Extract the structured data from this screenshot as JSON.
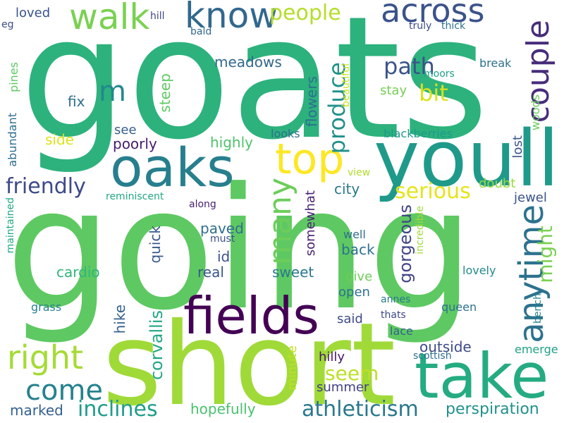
{
  "words": [
    {
      "text": "goats",
      "color": "#2db27d"
    },
    {
      "text": "going",
      "color": "#5ec962"
    },
    {
      "text": "short",
      "color": "#a0da39"
    },
    {
      "text": "youll",
      "color": "#1f9a8a"
    },
    {
      "text": "oaks",
      "color": "#277f8e"
    },
    {
      "text": "take",
      "color": "#25ab82"
    },
    {
      "text": "fields",
      "color": "#440154"
    },
    {
      "text": "top",
      "color": "#fde725"
    },
    {
      "text": "walk",
      "color": "#7ad151"
    },
    {
      "text": "know",
      "color": "#31688e"
    },
    {
      "text": "across",
      "color": "#3b528b"
    },
    {
      "text": "couple",
      "color": "#472d7b"
    },
    {
      "text": "anytime",
      "color": "#2c728e"
    },
    {
      "text": "many",
      "color": "#6ccd5a"
    },
    {
      "text": "right",
      "color": "#a5db36"
    },
    {
      "text": "come",
      "color": "#26828e"
    },
    {
      "text": "people",
      "color": "#b5de2b"
    },
    {
      "text": "m",
      "color": "#23888e"
    },
    {
      "text": "path",
      "color": "#3b528b"
    },
    {
      "text": "produce",
      "color": "#21918c"
    },
    {
      "text": "bit",
      "color": "#d8e219"
    },
    {
      "text": "friendly",
      "color": "#3e4a89"
    },
    {
      "text": "serious",
      "color": "#e5e419"
    },
    {
      "text": "inclines",
      "color": "#1f9e89"
    },
    {
      "text": "athleticism",
      "color": "#2a788e"
    },
    {
      "text": "perspiration",
      "color": "#21918c"
    },
    {
      "text": "might",
      "color": "#7ad151"
    },
    {
      "text": "seem",
      "color": "#bddf26"
    },
    {
      "text": "corvallis",
      "color": "#22a785"
    },
    {
      "text": "gorgeous",
      "color": "#414487"
    },
    {
      "text": "outside",
      "color": "#3e4a89"
    },
    {
      "text": "cardio",
      "color": "#31b57b"
    },
    {
      "text": "sweet",
      "color": "#2a788e"
    },
    {
      "text": "back",
      "color": "#2c728e"
    },
    {
      "text": "paved",
      "color": "#2e6f8e"
    },
    {
      "text": "id",
      "color": "#3b528b"
    },
    {
      "text": "real",
      "color": "#39568c"
    },
    {
      "text": "quick",
      "color": "#38598c"
    },
    {
      "text": "hike",
      "color": "#355f8d"
    },
    {
      "text": "hopefully",
      "color": "#4ac16d"
    },
    {
      "text": "marked",
      "color": "#34618d"
    },
    {
      "text": "summer",
      "color": "#424086"
    },
    {
      "text": "open",
      "color": "#2c728e"
    },
    {
      "text": "give",
      "color": "#6ccd5a"
    },
    {
      "text": "said",
      "color": "#3e4a89"
    },
    {
      "text": "hilly",
      "color": "#48186a"
    },
    {
      "text": "minute",
      "color": "#c0df25"
    },
    {
      "text": "city",
      "color": "#2a788e"
    },
    {
      "text": "doubt",
      "color": "#9bd93c"
    },
    {
      "text": "jewel",
      "color": "#3b528b"
    },
    {
      "text": "lost",
      "color": "#3a548c"
    },
    {
      "text": "highly",
      "color": "#4ec36b"
    },
    {
      "text": "poorly",
      "color": "#481a6c"
    },
    {
      "text": "side",
      "color": "#dde318"
    },
    {
      "text": "see",
      "color": "#355f8d"
    },
    {
      "text": "fix",
      "color": "#2d708e"
    },
    {
      "text": "meadows",
      "color": "#31688e"
    },
    {
      "text": "steep",
      "color": "#5ec962"
    },
    {
      "text": "flowers",
      "color": "#2d708e"
    },
    {
      "text": "stay",
      "color": "#75d054"
    },
    {
      "text": "somewhat",
      "color": "#482173"
    },
    {
      "text": "along",
      "color": "#481f70"
    },
    {
      "text": "must",
      "color": "#3b528b"
    },
    {
      "text": "view",
      "color": "#b2dd2d"
    },
    {
      "text": "well",
      "color": "#2d708e"
    },
    {
      "text": "incredible",
      "color": "#a0da39"
    },
    {
      "text": "lovely",
      "color": "#23898e"
    },
    {
      "text": "annes",
      "color": "#2a788e"
    },
    {
      "text": "thats",
      "color": "#404688"
    },
    {
      "text": "lace",
      "color": "#34618d"
    },
    {
      "text": "queen",
      "color": "#2c728e"
    },
    {
      "text": "bench",
      "color": "#25838e"
    },
    {
      "text": "emerge",
      "color": "#1fa187"
    },
    {
      "text": "scottish",
      "color": "#2e6e8e"
    },
    {
      "text": "grass",
      "color": "#26828e"
    },
    {
      "text": "reminiscent",
      "color": "#22a884"
    },
    {
      "text": "blackberries",
      "color": "#1f9a8a"
    },
    {
      "text": "looks",
      "color": "#2d708e"
    },
    {
      "text": "beautiful",
      "color": "#d0e11c"
    },
    {
      "text": "moors",
      "color": "#1fa188"
    },
    {
      "text": "break",
      "color": "#2c728e"
    },
    {
      "text": "woods",
      "color": "#69cd5b"
    },
    {
      "text": "truly",
      "color": "#3e4a89"
    },
    {
      "text": "thick",
      "color": "#2c728e"
    },
    {
      "text": "hill",
      "color": "#3f4889"
    },
    {
      "text": "bald",
      "color": "#31688e"
    },
    {
      "text": "loved",
      "color": "#3b528b"
    },
    {
      "text": "eg",
      "color": "#3e4a89"
    },
    {
      "text": "pines",
      "color": "#5ec962"
    },
    {
      "text": "abundant",
      "color": "#2e6e8e"
    },
    {
      "text": "maintained",
      "color": "#22a884"
    }
  ]
}
